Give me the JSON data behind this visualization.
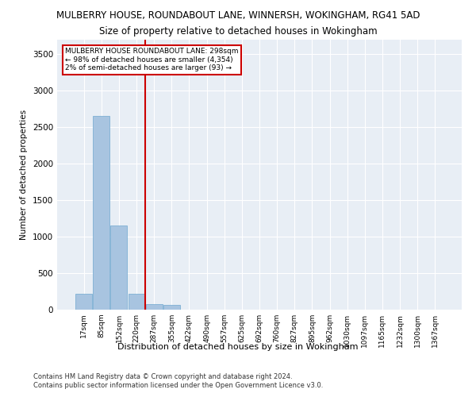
{
  "title_line1": "MULBERRY HOUSE, ROUNDABOUT LANE, WINNERSH, WOKINGHAM, RG41 5AD",
  "title_line2": "Size of property relative to detached houses in Wokingham",
  "xlabel": "Distribution of detached houses by size in Wokingham",
  "ylabel": "Number of detached properties",
  "bin_labels": [
    "17sqm",
    "85sqm",
    "152sqm",
    "220sqm",
    "287sqm",
    "355sqm",
    "422sqm",
    "490sqm",
    "557sqm",
    "625sqm",
    "692sqm",
    "760sqm",
    "827sqm",
    "895sqm",
    "962sqm",
    "1030sqm",
    "1097sqm",
    "1165sqm",
    "1232sqm",
    "1300sqm",
    "1367sqm"
  ],
  "bar_values": [
    220,
    2650,
    1150,
    220,
    80,
    60,
    0,
    0,
    0,
    0,
    0,
    0,
    0,
    0,
    0,
    0,
    0,
    0,
    0,
    0,
    0
  ],
  "bar_color": "#a8c4e0",
  "bar_edge_color": "#6fa8d0",
  "property_line_x": 4,
  "property_line_label": "MULBERRY HOUSE ROUNDABOUT LANE: 298sqm",
  "annotation_line1": "← 98% of detached houses are smaller (4,354)",
  "annotation_line2": "2% of semi-detached houses are larger (93) →",
  "vline_color": "#cc0000",
  "ylim": [
    0,
    3700
  ],
  "yticks": [
    0,
    500,
    1000,
    1500,
    2000,
    2500,
    3000,
    3500
  ],
  "footnote1": "Contains HM Land Registry data © Crown copyright and database right 2024.",
  "footnote2": "Contains public sector information licensed under the Open Government Licence v3.0.",
  "plot_bg_color": "#e8eef5"
}
